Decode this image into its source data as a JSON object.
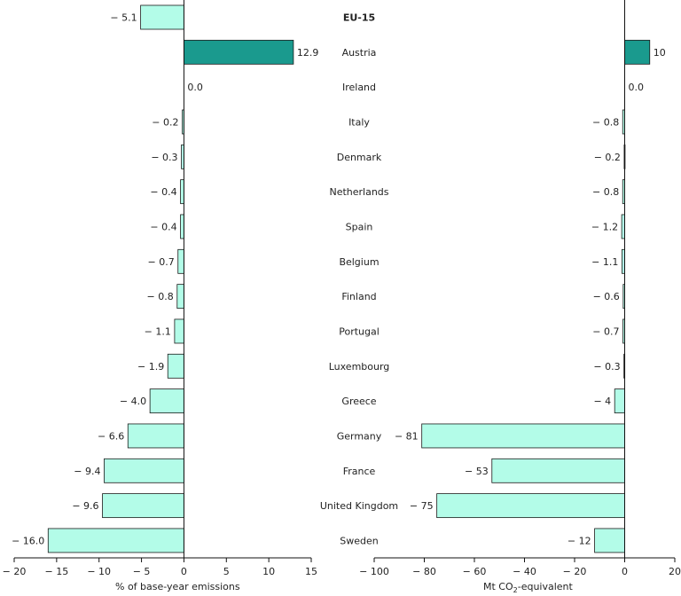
{
  "chart_data": [
    {
      "type": "bar",
      "orientation": "horizontal",
      "xlabel": "% of base-year emissions",
      "xlim": [
        -20,
        15
      ],
      "xticks": [
        -20,
        -15,
        -10,
        -5,
        0,
        5,
        10,
        15
      ],
      "xtick_labels": [
        "− 20",
        "− 15",
        "− 10",
        "− 5",
        "0",
        "5",
        "10",
        "15"
      ],
      "categories": [
        "EU-15",
        "Austria",
        "Ireland",
        "Italy",
        "Denmark",
        "Netherlands",
        "Spain",
        "Belgium",
        "Finland",
        "Portugal",
        "Luxembourg",
        "Greece",
        "Germany",
        "France",
        "United Kingdom",
        "Sweden"
      ],
      "values": [
        -5.1,
        12.9,
        0.0,
        -0.2,
        -0.3,
        -0.4,
        -0.4,
        -0.7,
        -0.8,
        -1.1,
        -1.9,
        -4.0,
        -6.6,
        -9.4,
        -9.6,
        -16.0
      ],
      "value_labels": [
        "− 5.1",
        "12.9",
        "0.0",
        "− 0.2",
        "− 0.3",
        "− 0.4",
        "− 0.4",
        "− 0.7",
        "− 0.8",
        "− 1.1",
        "− 1.9",
        "− 4.0",
        "− 6.6",
        "− 9.4",
        "− 9.6",
        "− 16.0"
      ],
      "positive_color": "#1a9a8e",
      "negative_color": "#b3fce8",
      "grid": false
    },
    {
      "type": "bar",
      "orientation": "horizontal",
      "xlabel": "Mt CO",
      "xlabel_sub": "2",
      "xlabel_suffix": "-equivalent",
      "xlim": [
        -100,
        20
      ],
      "xticks": [
        -100,
        -80,
        -60,
        -40,
        -20,
        0,
        20
      ],
      "xtick_labels": [
        "− 100",
        "− 80",
        "− 60",
        "− 40",
        "− 20",
        "0",
        "20"
      ],
      "categories": [
        "EU-15",
        "Austria",
        "Ireland",
        "Italy",
        "Denmark",
        "Netherlands",
        "Spain",
        "Belgium",
        "Finland",
        "Portugal",
        "Luxembourg",
        "Greece",
        "Germany",
        "France",
        "United Kingdom",
        "Sweden"
      ],
      "values": [
        null,
        10,
        0.0,
        -0.8,
        -0.2,
        -0.8,
        -1.2,
        -1.1,
        -0.6,
        -0.7,
        -0.3,
        -4,
        -81,
        -53,
        -75,
        -12
      ],
      "value_labels": [
        "",
        "10",
        "0.0",
        "− 0.8",
        "− 0.2",
        "− 0.8",
        "− 1.2",
        "− 1.1",
        "− 0.6",
        "− 0.7",
        "− 0.3",
        "− 4",
        "− 81",
        "− 53",
        "− 75",
        "− 12"
      ],
      "positive_color": "#1a9a8e",
      "negative_color": "#b3fce8",
      "grid": false
    }
  ]
}
